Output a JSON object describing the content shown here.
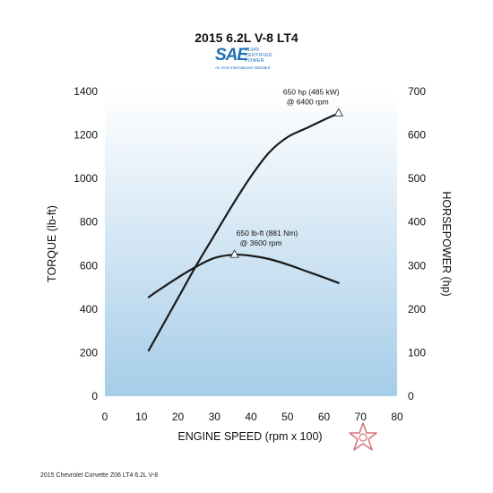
{
  "chart_data": {
    "type": "line",
    "title": "2015 6.2L V-8 LT4",
    "xlabel": "ENGINE SPEED (rpm x 100)",
    "ylabel_left": "TORQUE (lb-ft)",
    "ylabel_right": "HORSEPOWER (hp)",
    "xlim": [
      0,
      80
    ],
    "ylim_left": [
      0,
      1400
    ],
    "ylim_right": [
      0,
      700
    ],
    "x_ticks": [
      0,
      10,
      20,
      30,
      40,
      50,
      60,
      70,
      80
    ],
    "y_ticks_left": [
      0,
      200,
      400,
      600,
      800,
      1000,
      1200,
      1400
    ],
    "y_ticks_right": [
      0,
      100,
      200,
      300,
      400,
      500,
      600,
      700
    ],
    "grid": false,
    "series": [
      {
        "axis": "left",
        "x": [
          12,
          15,
          20,
          25,
          30,
          35.5,
          40,
          45,
          50,
          55,
          60,
          64
        ],
        "y": [
          455,
          490,
          545,
          595,
          635,
          650,
          645,
          630,
          605,
          575,
          545,
          520
        ]
      },
      {
        "axis": "right",
        "x": [
          12,
          15,
          20,
          25,
          30,
          35,
          40,
          45,
          50,
          55,
          60,
          64
        ],
        "y": [
          105,
          150,
          225,
          300,
          370,
          440,
          505,
          560,
          595,
          615,
          635,
          650
        ]
      }
    ],
    "annotations": [
      {
        "axis": "right",
        "x": 64,
        "y": 650,
        "line1": "650 hp (485 kW)",
        "line2": "@ 6400 rpm"
      },
      {
        "axis": "left",
        "x": 35.5,
        "y": 650,
        "line1": "650 lb-ft (881 Nm)",
        "line2": "@ 3600 rpm"
      }
    ],
    "colors": {
      "fill_top": "#ffffff",
      "fill_bottom": "#a6cde9",
      "line": "#1a1a1a"
    }
  },
  "logo": {
    "mark": "SAE",
    "cert": "J1349\nCERTIFIED\nPOWER",
    "sub": "An SAE International Standard"
  },
  "footnote": "2015 Chevrolet Corvette Z06 LT4 6.2L V-8"
}
